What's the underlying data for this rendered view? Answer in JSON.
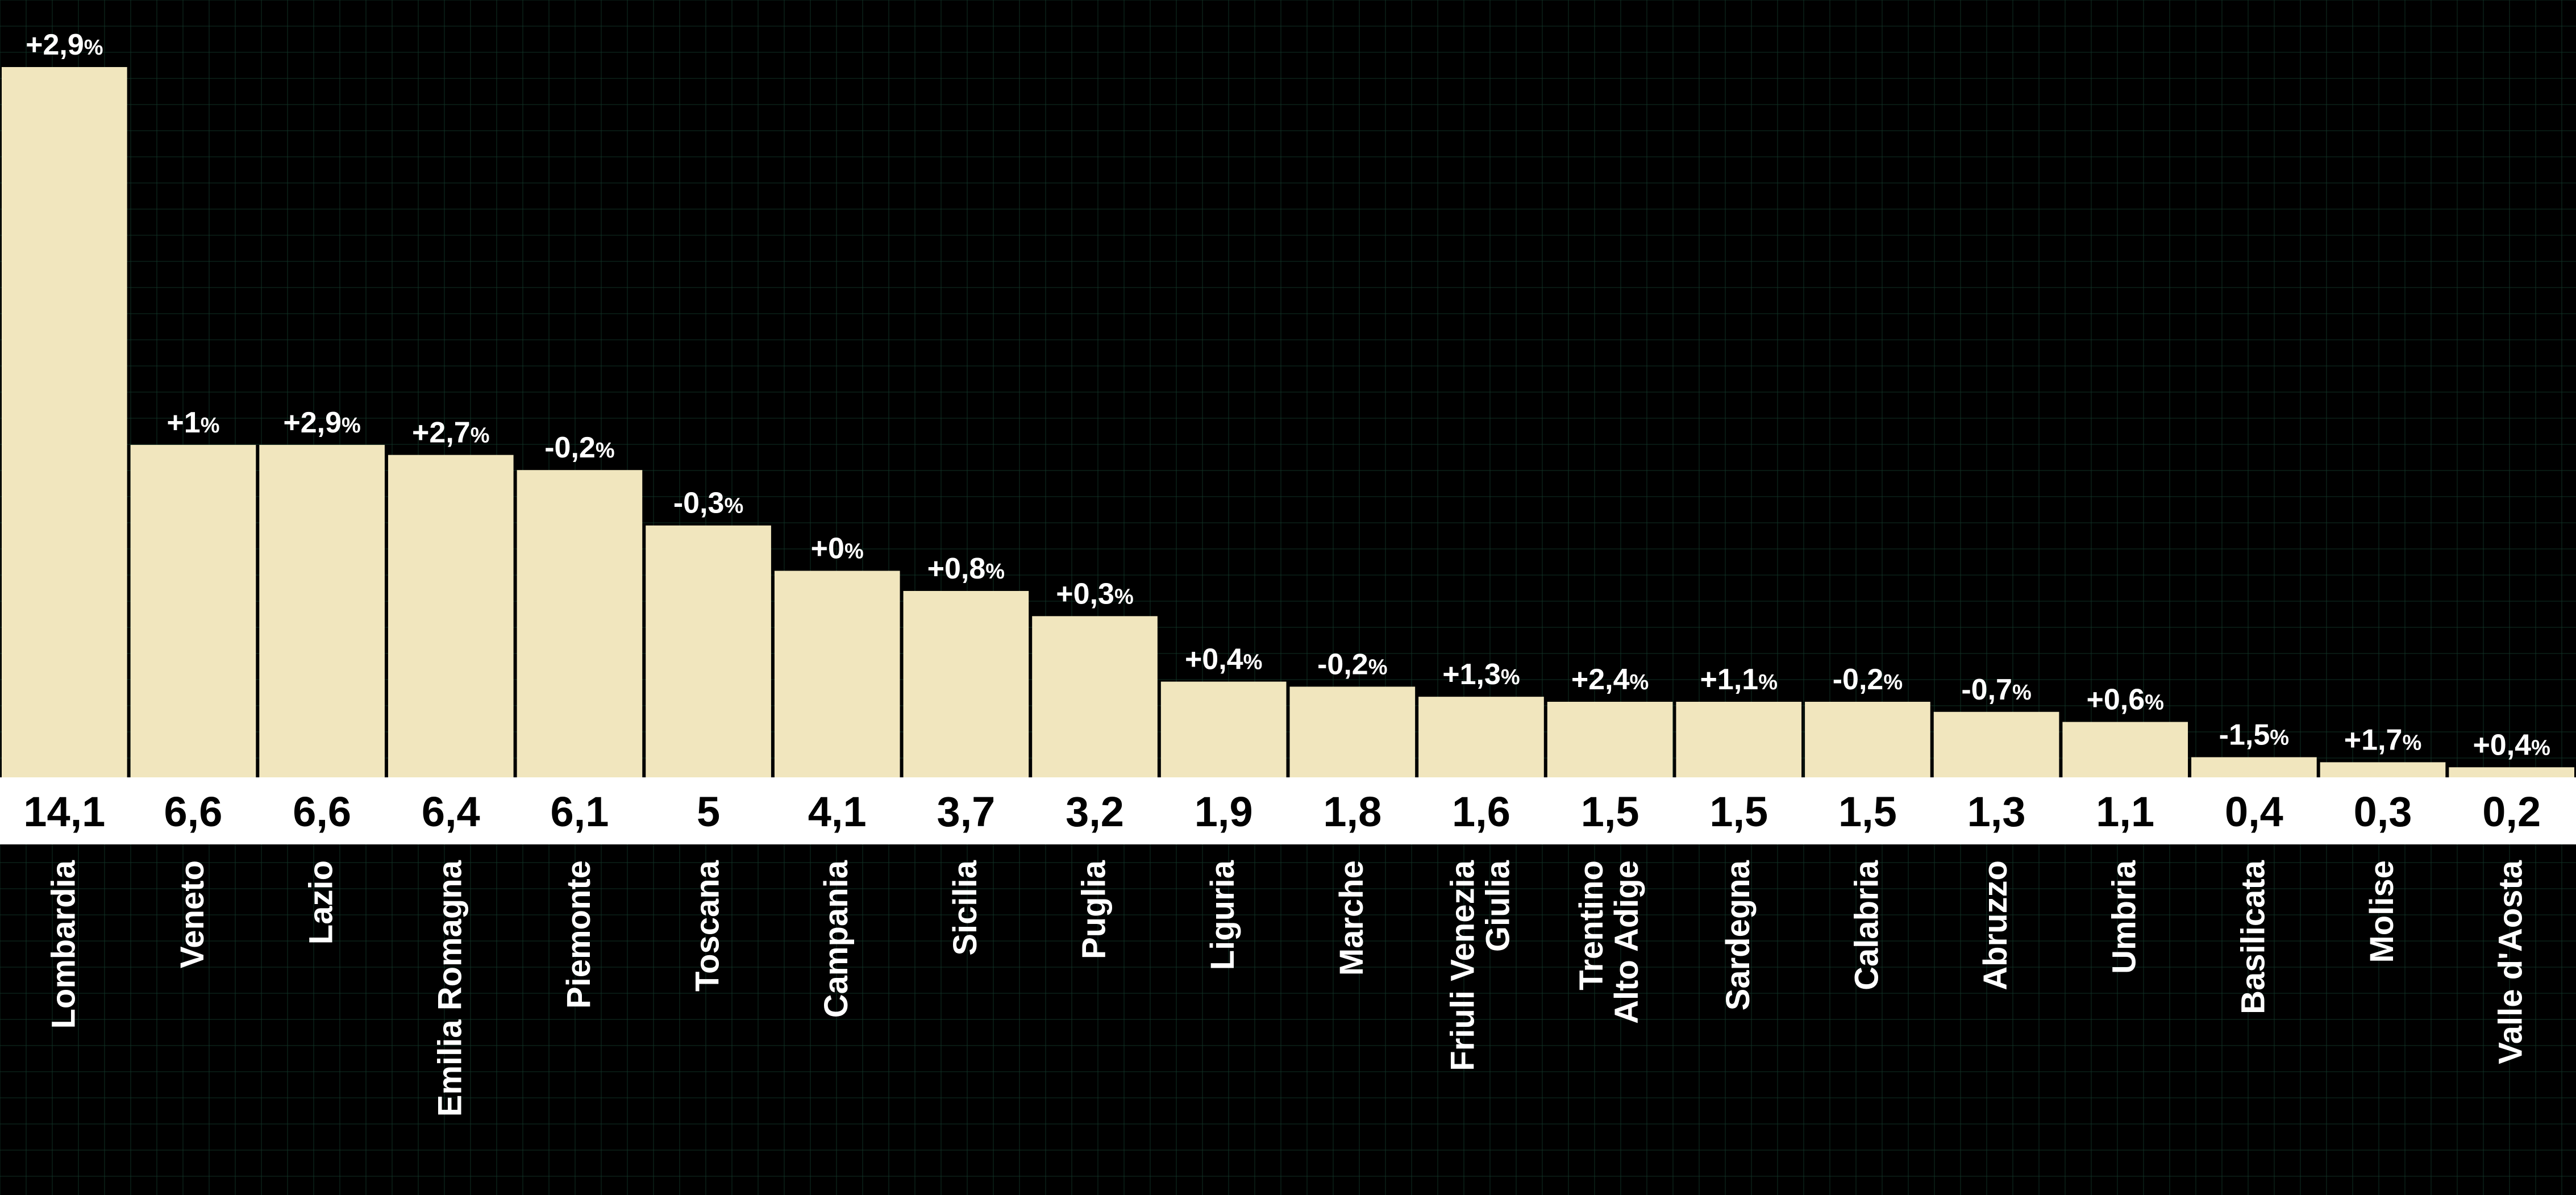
{
  "chart_data": {
    "type": "bar",
    "title": "",
    "xlabel": "",
    "ylabel": "",
    "ylim": [
      0,
      14.1
    ],
    "categories": [
      "Lombardia",
      "Veneto",
      "Lazio",
      "Emilia Romagna",
      "Piemonte",
      "Toscana",
      "Campania",
      "Sicilia",
      "Puglia",
      "Liguria",
      "Marche",
      "Friuli Venezia Giulia",
      "Trentino Alto Adige",
      "Sardegna",
      "Calabria",
      "Abruzzo",
      "Umbria",
      "Basilicata",
      "Molise",
      "Valle d'Aosta"
    ],
    "category_label_lines": [
      [
        "Lombardia"
      ],
      [
        "Veneto"
      ],
      [
        "Lazio"
      ],
      [
        "Emilia Romagna"
      ],
      [
        "Piemonte"
      ],
      [
        "Toscana"
      ],
      [
        "Campania"
      ],
      [
        "Sicilia"
      ],
      [
        "Puglia"
      ],
      [
        "Liguria"
      ],
      [
        "Marche"
      ],
      [
        "Friuli Venezia",
        "Giulia"
      ],
      [
        "Trentino",
        "Alto Adige"
      ],
      [
        "Sardegna"
      ],
      [
        "Calabria"
      ],
      [
        "Abruzzo"
      ],
      [
        "Umbria"
      ],
      [
        "Basilicata"
      ],
      [
        "Molise"
      ],
      [
        "Valle d'Aosta"
      ]
    ],
    "values": [
      14.1,
      6.6,
      6.6,
      6.4,
      6.1,
      5,
      4.1,
      3.7,
      3.2,
      1.9,
      1.8,
      1.6,
      1.5,
      1.5,
      1.5,
      1.3,
      1.1,
      0.4,
      0.3,
      0.2
    ],
    "value_labels": [
      "14,1",
      "6,6",
      "6,6",
      "6,4",
      "6,1",
      "5",
      "4,1",
      "3,7",
      "3,2",
      "1,9",
      "1,8",
      "1,6",
      "1,5",
      "1,5",
      "1,5",
      "1,3",
      "1,1",
      "0,4",
      "0,3",
      "0,2"
    ],
    "change_labels": [
      "+2,9",
      "+1",
      "+2,9",
      "+2,7",
      "-0,2",
      "-0,3",
      "+0",
      "+0,8",
      "+0,3",
      "+0,4",
      "-0,2",
      "+1,3",
      "+2,4",
      "+1,1",
      "-0,2",
      "-0,7",
      "+0,6",
      "-1,5",
      "+1,7",
      "+0,4"
    ],
    "change_unit": "%",
    "colors": {
      "background": "#000000",
      "bar": "#f1e6be",
      "value_strip": "#ffffff",
      "text": "#ffffff",
      "value_text": "#000000",
      "grid": "#123a2c"
    },
    "grid": true,
    "legend": "none"
  }
}
